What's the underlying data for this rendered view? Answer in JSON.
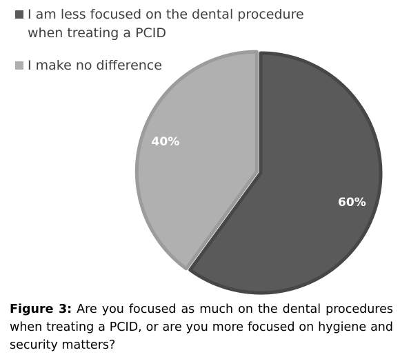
{
  "chart_data": {
    "type": "pie",
    "title": "",
    "slices": [
      {
        "name": "I am less focused on the dental procedure when treating a PCID",
        "value": 60,
        "label": "60%",
        "color": "#5a5a5a"
      },
      {
        "name": "I make no difference",
        "value": 40,
        "label": "40%",
        "color": "#b0b0b0"
      }
    ],
    "legend_position": "top-left"
  },
  "caption": {
    "label": "Figure 3:",
    "text": " Are you focused as much on the dental procedures when treating a PCID, or are you more focused on hygiene and security matters?"
  }
}
